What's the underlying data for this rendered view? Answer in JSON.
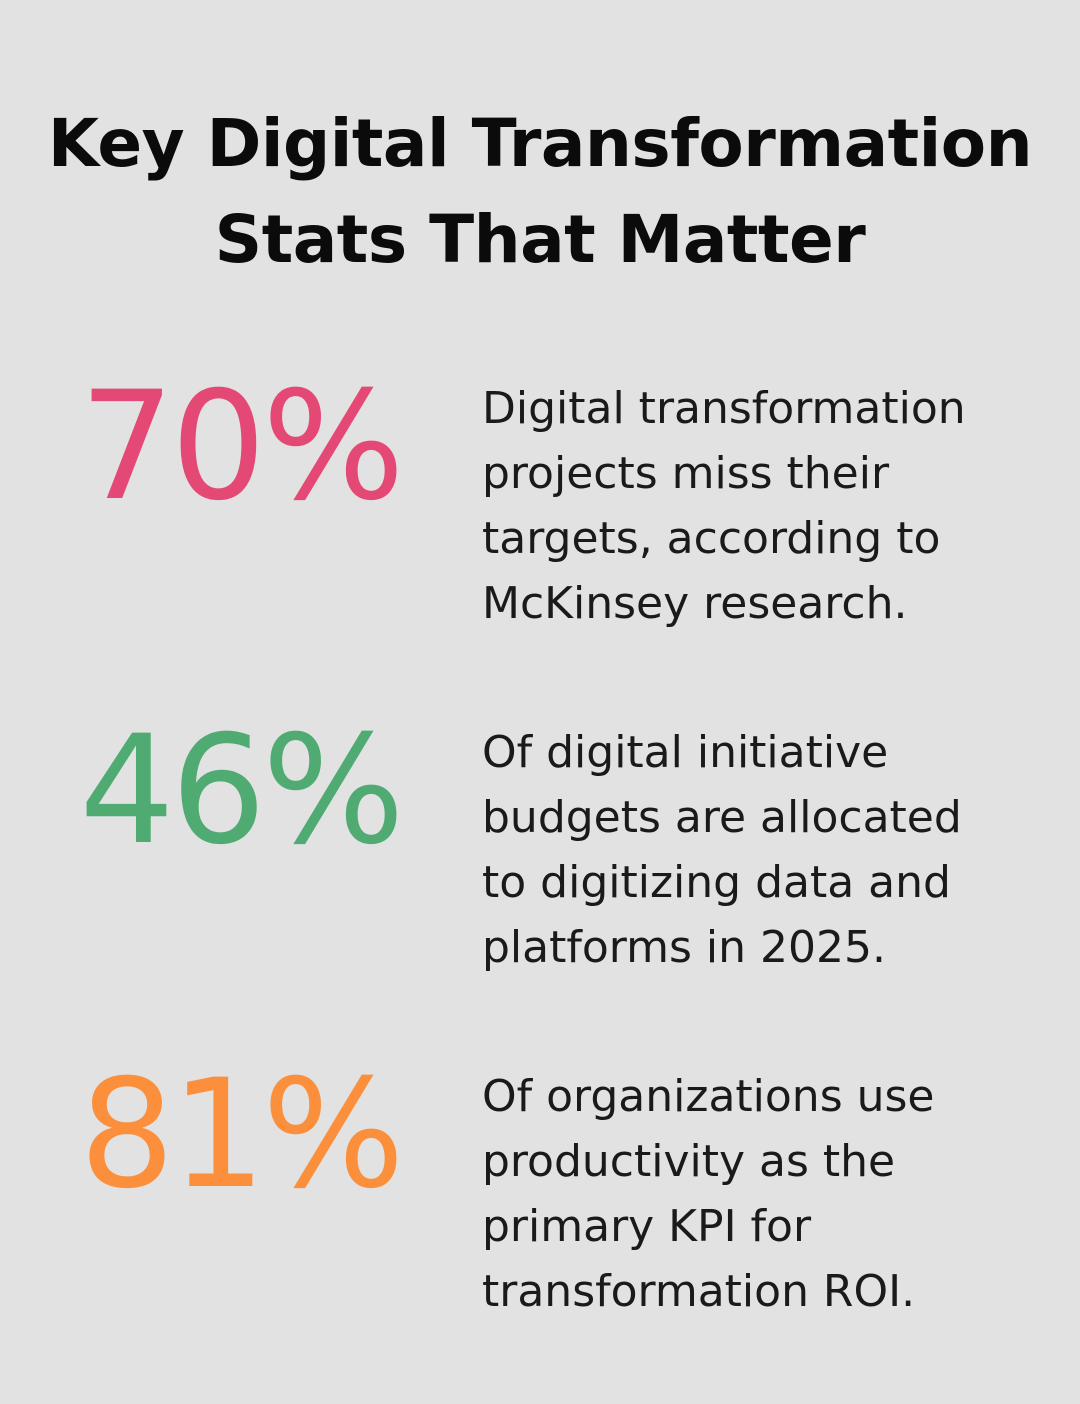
{
  "title": {
    "line1": "Key Digital Transformation",
    "line2": "Stats That Matter"
  },
  "stats": [
    {
      "value": "70%",
      "color": "#e44874",
      "lines": [
        "Digital transformation",
        "projects miss their",
        "targets, according to",
        "McKinsey research."
      ]
    },
    {
      "value": "46%",
      "color": "#4fab72",
      "lines": [
        "Of digital initiative",
        "budgets are allocated",
        "to digitizing data and",
        "platforms in 2025."
      ]
    },
    {
      "value": "81%",
      "color": "#fb8f3c",
      "lines": [
        "Of organizations use",
        "productivity as the",
        "primary KPI for",
        "transformation ROI."
      ]
    }
  ]
}
